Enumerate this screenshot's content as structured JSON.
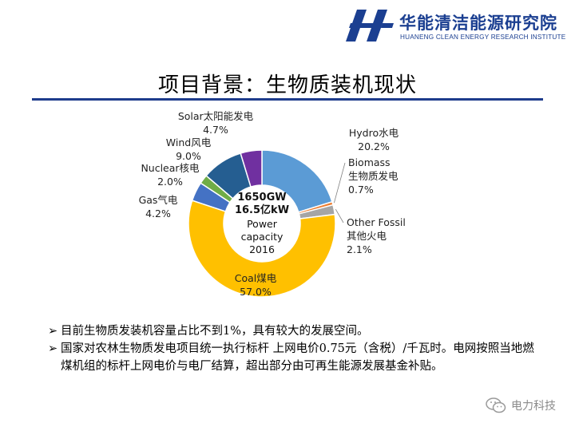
{
  "header": {
    "org_name_cn": "华能清洁能源研究院",
    "org_name_en": "HUANENG CLEAN ENERGY RESEARCH INSTITUTE",
    "logo_icon": "huaneng-logo-icon",
    "brand_color": "#1b3f91"
  },
  "slide": {
    "title": "项目背景：生物质装机现状"
  },
  "chart_data": {
    "type": "pie",
    "variant": "donut",
    "start": "12 o'clock, clockwise",
    "center_lines": [
      "1650GW",
      "16.5亿kW",
      "Power",
      "capacity",
      "2016"
    ],
    "slices": [
      {
        "label_en": "Hydro",
        "label_cn": "水电",
        "pct_text": "20.2%",
        "value": 20.2,
        "color": "#5b9bd5"
      },
      {
        "label_en": "Biomass",
        "label_cn": "生物质发电",
        "pct_text": "0.7%",
        "value": 0.7,
        "color": "#ed7d31"
      },
      {
        "label_en": "Other Fossil",
        "label_cn": "其他火电",
        "pct_text": "2.1%",
        "value": 2.1,
        "color": "#a5a5a5"
      },
      {
        "label_en": "Coal",
        "label_cn": "煤电",
        "pct_text": "57.0%",
        "value": 57.0,
        "color": "#ffc000"
      },
      {
        "label_en": "Gas",
        "label_cn": "气电",
        "pct_text": "4.2%",
        "value": 4.2,
        "color": "#4472c4"
      },
      {
        "label_en": "Nuclear",
        "label_cn": "核电",
        "pct_text": "2.0%",
        "value": 2.0,
        "color": "#70ad47"
      },
      {
        "label_en": "Wind",
        "label_cn": "风电",
        "pct_text": "9.0%",
        "value": 9.0,
        "color": "#255e91"
      },
      {
        "label_en": "Solar",
        "label_cn": "太阳能发电",
        "pct_text": "4.7%",
        "value": 4.7,
        "color": "#7030a0"
      }
    ]
  },
  "notes": [
    "目前生物质发装机容量占比不到1%，具有较大的发展空间。",
    "国家对农林生物质发电项目统一执行标杆 上网电价0.75元（含税）/千瓦时。电网按照当地燃煤机组的标杆上网电价与电厂结算，超出部分由可再生能源发展基金补贴。"
  ],
  "bullet_glyph": "➢",
  "watermark": {
    "icon": "wechat-icon",
    "text": "电力科技"
  }
}
